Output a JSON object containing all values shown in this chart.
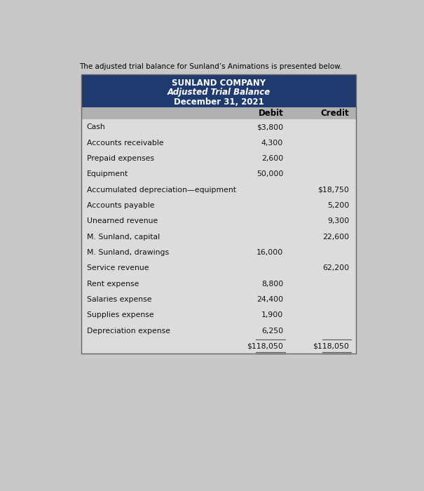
{
  "page_bg": "#c8c8c8",
  "intro_text": "The adjusted trial balance for Sunland’s Animations is presented below.",
  "intro_fontsize": 7.5,
  "header_bg": "#1e3a6e",
  "header_text_color": "#ffffff",
  "title_line1": "SUNLAND COMPANY",
  "title_line2": "Adjusted Trial Balance",
  "title_line3": "December 31, 2021",
  "title_fontsize": 8.5,
  "col_header_bg": "#b0b0b0",
  "col_header_text": "#000000",
  "col_header_fontsize": 8.5,
  "table_bg": "#dcdcdc",
  "row_text_color": "#111111",
  "row_fontsize": 7.8,
  "rows": [
    {
      "account": "Cash",
      "debit": "$3,800",
      "credit": ""
    },
    {
      "account": "Accounts receivable",
      "debit": "4,300",
      "credit": ""
    },
    {
      "account": "Prepaid expenses",
      "debit": "2,600",
      "credit": ""
    },
    {
      "account": "Equipment",
      "debit": "50,000",
      "credit": ""
    },
    {
      "account": "Accumulated depreciation—equipment",
      "debit": "",
      "credit": "$18,750"
    },
    {
      "account": "Accounts payable",
      "debit": "",
      "credit": "5,200"
    },
    {
      "account": "Unearned revenue",
      "debit": "",
      "credit": "9,300"
    },
    {
      "account": "M. Sunland, capital",
      "debit": "",
      "credit": "22,600"
    },
    {
      "account": "M. Sunland, drawings",
      "debit": "16,000",
      "credit": ""
    },
    {
      "account": "Service revenue",
      "debit": "",
      "credit": "62,200"
    },
    {
      "account": "Rent expense",
      "debit": "8,800",
      "credit": ""
    },
    {
      "account": "Salaries expense",
      "debit": "24,400",
      "credit": ""
    },
    {
      "account": "Supplies expense",
      "debit": "1,900",
      "credit": ""
    },
    {
      "account": "Depreciation expense",
      "debit": "6,250",
      "credit": ""
    }
  ],
  "total_debit": "$118,050",
  "total_credit": "$118,050",
  "total_fontsize": 7.8,
  "border_color": "#666666",
  "line_color": "#555555"
}
